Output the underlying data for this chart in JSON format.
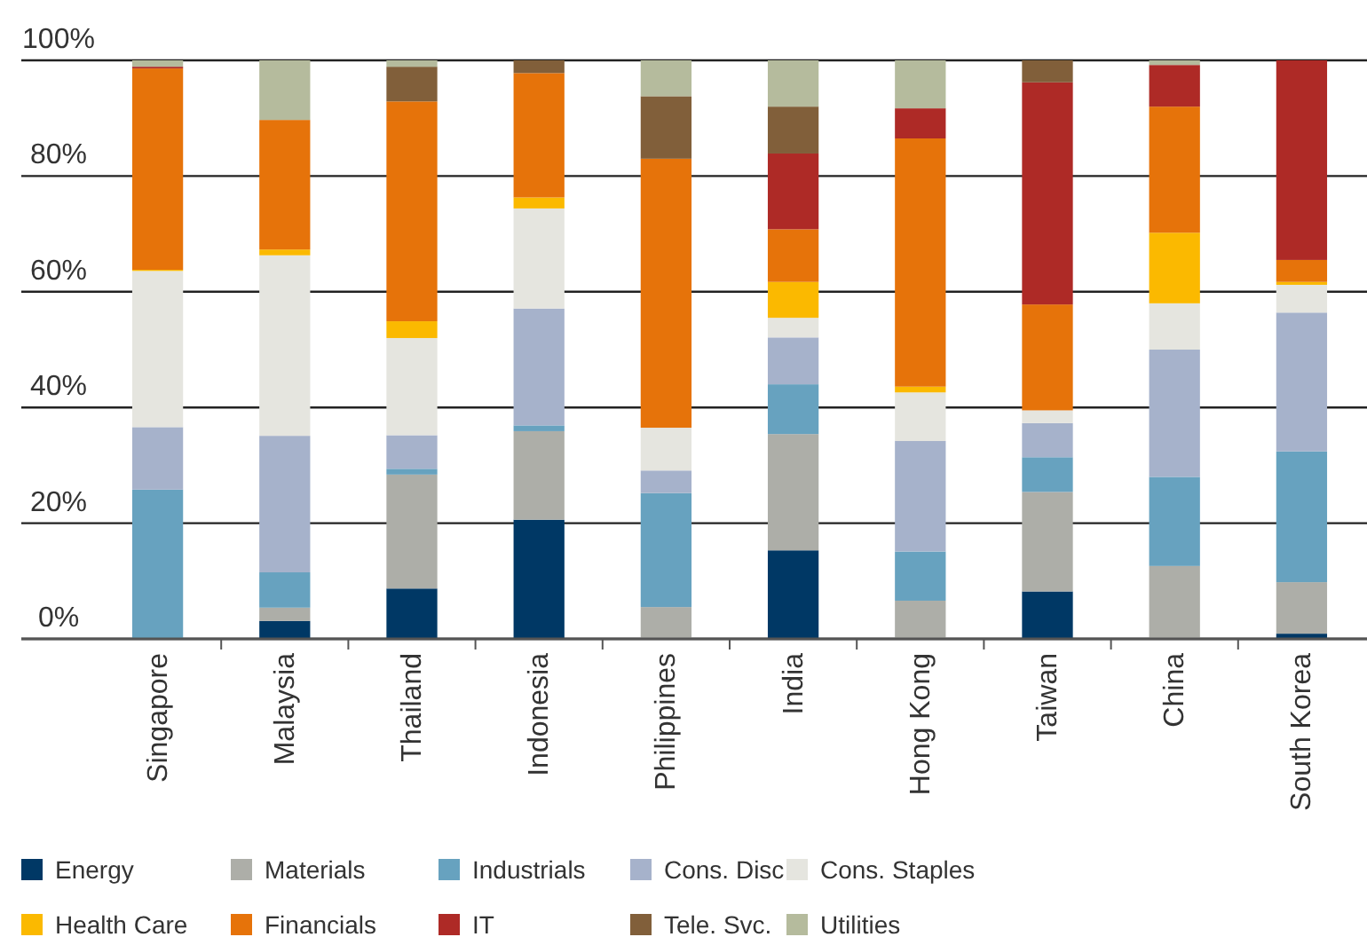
{
  "chart_data": {
    "type": "bar",
    "stacked": true,
    "categories": [
      "Singapore",
      "Malaysia",
      "Thailand",
      "Indonesia",
      "Philippines",
      "India",
      "Hong Kong",
      "Taiwan",
      "China",
      "South Korea"
    ],
    "ylim": [
      0,
      100
    ],
    "yticks": [
      {
        "value": 0,
        "label": "0%"
      },
      {
        "value": 20,
        "label": "20%"
      },
      {
        "value": 40,
        "label": "40%"
      },
      {
        "value": 60,
        "label": "60%"
      },
      {
        "value": 80,
        "label": "80%"
      },
      {
        "value": 100,
        "label": "100%"
      }
    ],
    "grid": "y",
    "legend": "bottom",
    "series": [
      {
        "name": "Energy",
        "color": "#003865",
        "values": [
          0,
          3.1,
          8.7,
          20.6,
          0,
          15.3,
          0,
          8.2,
          0,
          0.9
        ]
      },
      {
        "name": "Materials",
        "color": "#adaea8",
        "values": [
          0,
          2.3,
          19.7,
          15.3,
          5.5,
          20.1,
          6.6,
          17.2,
          12.6,
          8.9
        ]
      },
      {
        "name": "Industrials",
        "color": "#67a2bf",
        "values": [
          25.8,
          6.1,
          1.0,
          1.0,
          19.7,
          8.6,
          8.5,
          6.0,
          15.4,
          22.6
        ]
      },
      {
        "name": "Cons. Disc",
        "color": "#a6b2cb",
        "values": [
          10.8,
          23.6,
          5.8,
          20.2,
          3.9,
          8.1,
          19.1,
          5.9,
          22.0,
          24.0
        ]
      },
      {
        "name": "Cons. Staples",
        "color": "#e5e5df",
        "values": [
          27.0,
          31.2,
          16.8,
          17.3,
          7.4,
          3.4,
          8.4,
          2.2,
          8.0,
          4.8
        ]
      },
      {
        "name": "Health Care",
        "color": "#fbb900",
        "values": [
          0.2,
          1.0,
          2.9,
          1.9,
          0,
          6.2,
          1.0,
          0,
          12.2,
          0.5
        ]
      },
      {
        "name": "Financials",
        "color": "#e6730a",
        "values": [
          34.8,
          22.4,
          38.0,
          21.5,
          46.5,
          9.1,
          42.9,
          18.3,
          21.8,
          3.8
        ]
      },
      {
        "name": "IT",
        "color": "#ae2a26",
        "values": [
          0.3,
          0,
          0,
          0,
          0,
          13.1,
          5.2,
          38.4,
          7.2,
          34.5
        ]
      },
      {
        "name": "Tele. Svc.",
        "color": "#815f3a",
        "values": [
          0,
          0,
          6.0,
          2.2,
          10.8,
          8.1,
          0,
          3.8,
          0,
          0
        ]
      },
      {
        "name": "Utilities",
        "color": "#b5bb9d",
        "values": [
          1.1,
          10.3,
          1.1,
          0,
          6.2,
          8.0,
          8.3,
          0,
          0.8,
          0
        ]
      }
    ]
  }
}
